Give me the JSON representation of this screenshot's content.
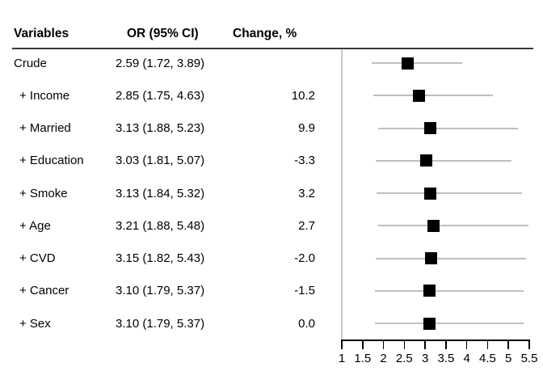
{
  "table": {
    "headers": {
      "variables": "Variables",
      "or_ci": "OR (95% CI)",
      "change": "Change, %"
    },
    "rows": [
      {
        "variable": "Crude",
        "indent": false,
        "or_ci": "2.59 (1.72, 3.89)",
        "change": ""
      },
      {
        "variable": "+ Income",
        "indent": true,
        "or_ci": "2.85 (1.75, 4.63)",
        "change": "10.2"
      },
      {
        "variable": "+ Married",
        "indent": true,
        "or_ci": "3.13 (1.88, 5.23)",
        "change": "9.9"
      },
      {
        "variable": "+ Education",
        "indent": true,
        "or_ci": "3.03 (1.81, 5.07)",
        "change": "-3.3"
      },
      {
        "variable": "+ Smoke",
        "indent": true,
        "or_ci": "3.13 (1.84, 5.32)",
        "change": "3.2"
      },
      {
        "variable": "+ Age",
        "indent": true,
        "or_ci": "3.21 (1.88, 5.48)",
        "change": "2.7"
      },
      {
        "variable": "+ CVD",
        "indent": true,
        "or_ci": "3.15 (1.82, 5.43)",
        "change": "-2.0"
      },
      {
        "variable": "+ Cancer",
        "indent": true,
        "or_ci": "3.10 (1.79, 5.37)",
        "change": "-1.5"
      },
      {
        "variable": "+ Sex",
        "indent": true,
        "or_ci": "3.10 (1.79, 5.37)",
        "change": "0.0"
      }
    ]
  },
  "chart_data": {
    "type": "scatter",
    "subtype": "forest-plot",
    "orientation": "horizontal",
    "title": "",
    "xlabel": "",
    "ylabel": "",
    "categories": [
      "Crude",
      "+ Income",
      "+ Married",
      "+ Education",
      "+ Smoke",
      "+ Age",
      "+ CVD",
      "+ Cancer",
      "+ Sex"
    ],
    "series": [
      {
        "name": "OR",
        "values": [
          2.59,
          2.85,
          3.13,
          3.03,
          3.13,
          3.21,
          3.15,
          3.1,
          3.1
        ]
      },
      {
        "name": "CI lower",
        "values": [
          1.72,
          1.75,
          1.88,
          1.81,
          1.84,
          1.88,
          1.82,
          1.79,
          1.79
        ]
      },
      {
        "name": "CI upper",
        "values": [
          3.89,
          4.63,
          5.23,
          5.07,
          5.32,
          5.48,
          5.43,
          5.37,
          5.37
        ]
      }
    ],
    "xlim": [
      1,
      5.5
    ],
    "xticks": [
      1,
      1.5,
      2,
      2.5,
      3,
      3.5,
      4,
      4.5,
      5,
      5.5
    ],
    "xtick_labels": [
      "1",
      "1.5",
      "2",
      "2.5",
      "3",
      "3.5",
      "4",
      "4.5",
      "5",
      "5.5"
    ],
    "marker": "filled-square",
    "grid": false,
    "legend": "none"
  },
  "colors": {
    "background": "#ffffff",
    "text": "#000000",
    "marker": "#000000",
    "ci_line": "#bfbfbf",
    "gridline": "#c9c9c9",
    "header_rule": "#3a3a3a",
    "axis": "#000000"
  }
}
